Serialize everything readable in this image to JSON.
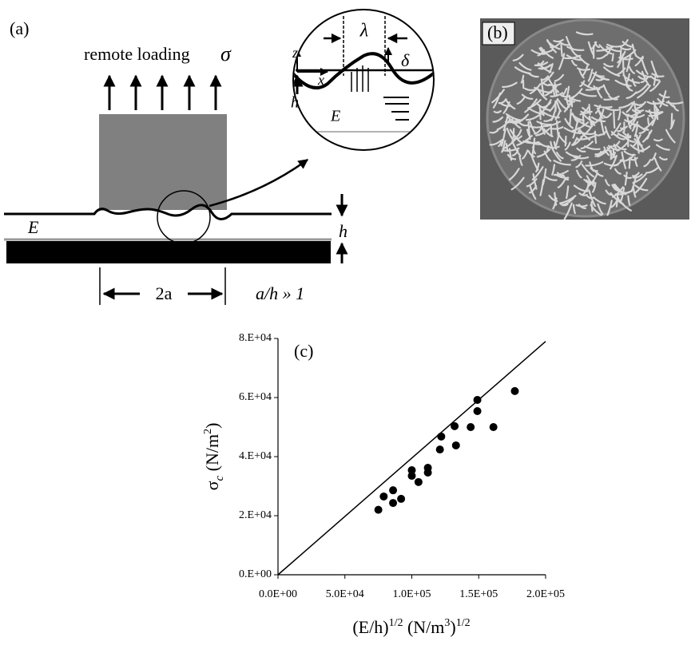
{
  "diagram": {
    "label": "(a)",
    "loading": "remote loading",
    "sigma": "σ",
    "modulus": "E",
    "thickness": "h",
    "width": "2a",
    "ratio": "a/h » 1",
    "inset": {
      "lambda": "λ",
      "delta": "δ",
      "z": "z",
      "x": "x",
      "h": "h",
      "E": "E"
    }
  },
  "photo": {
    "label": "(b)"
  },
  "chart_data": {
    "type": "scatter",
    "title": "(c)",
    "ylabel": [
      {
        "text": "σ"
      },
      {
        "text": "c",
        "sub": true
      },
      {
        "text": " (N/m"
      },
      {
        "text": "2",
        "sup": true
      },
      {
        "text": ")"
      }
    ],
    "xlabel": [
      {
        "text": "(E/h)"
      },
      {
        "text": "1/2",
        "sup": true
      },
      {
        "text": " (N/m"
      },
      {
        "text": "3",
        "sup": true
      },
      {
        "text": ")"
      },
      {
        "text": "1/2",
        "sup": true
      }
    ],
    "x": [
      75000,
      79000,
      86000,
      86000,
      92000,
      100000,
      100000,
      105000,
      112000,
      112000,
      121000,
      122000,
      132000,
      133000,
      144000,
      149000,
      149000,
      161000,
      177000
    ],
    "values": [
      22000,
      26500,
      24300,
      28600,
      25700,
      35400,
      33500,
      31400,
      36200,
      34600,
      42400,
      46800,
      50300,
      43800,
      50000,
      59200,
      55400,
      50000,
      62200
    ],
    "color": "#000000",
    "fit_line": {
      "x": [
        0,
        200000
      ],
      "values": [
        0,
        79000
      ]
    },
    "xlim": [
      0,
      200000
    ],
    "ylim": [
      0,
      80000
    ],
    "xticks": [
      {
        "value": 0,
        "label": "0.0E+00"
      },
      {
        "value": 50000,
        "label": "5.0E+04"
      },
      {
        "value": 100000,
        "label": "1.0E+05"
      },
      {
        "value": 150000,
        "label": "1.5E+05"
      },
      {
        "value": 200000,
        "label": "2.0E+05"
      }
    ],
    "yticks": [
      {
        "value": 0,
        "label": "0.E+00"
      },
      {
        "value": 20000,
        "label": "2.E+04"
      },
      {
        "value": 40000,
        "label": "4.E+04"
      },
      {
        "value": 60000,
        "label": "6.E+04"
      },
      {
        "value": 80000,
        "label": "8.E+04"
      }
    ]
  }
}
